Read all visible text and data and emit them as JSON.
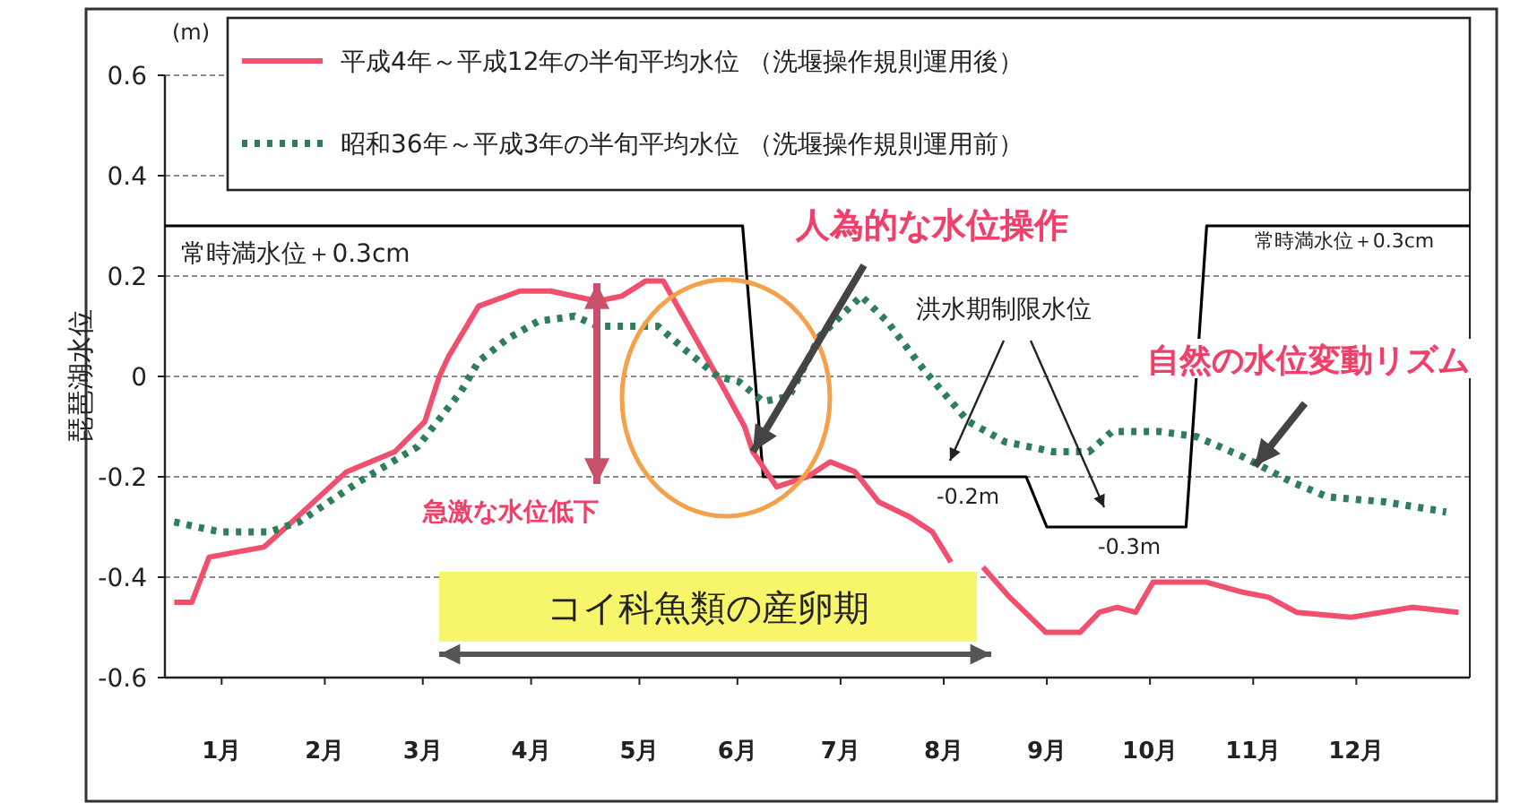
{
  "chart_data": {
    "type": "line",
    "ylabel": "琵琶湖水位",
    "xlim": [
      0,
      12.65
    ],
    "ylim": [
      -0.6,
      0.6
    ],
    "yticks": [
      -0.6,
      -0.4,
      -0.2,
      0,
      0.2,
      0.4,
      0.6
    ],
    "xticks": [
      {
        "value": 0.55,
        "label": "1月"
      },
      {
        "value": 1.55,
        "label": "2月"
      },
      {
        "value": 2.5,
        "label": "3月"
      },
      {
        "value": 3.55,
        "label": "4月"
      },
      {
        "value": 4.6,
        "label": "5月"
      },
      {
        "value": 5.55,
        "label": "6月"
      },
      {
        "value": 6.55,
        "label": "7月"
      },
      {
        "value": 7.55,
        "label": "8月"
      },
      {
        "value": 8.55,
        "label": "9月"
      },
      {
        "value": 9.55,
        "label": "10月"
      },
      {
        "value": 10.55,
        "label": "11月"
      },
      {
        "value": 11.55,
        "label": "12月"
      }
    ],
    "grid": "y",
    "legend": "top",
    "marker": "none",
    "series": [
      {
        "name": "平成4年～平成12年の半旬平均水位 （洗堰操作規則運用後）",
        "color": "#f0506e",
        "line_style": "solid",
        "x": [
          0.09,
          0.26,
          0.43,
          0.96,
          1.23,
          1.76,
          2.23,
          2.52,
          2.66,
          2.75,
          3.04,
          3.44,
          3.74,
          4.19,
          4.43,
          4.66,
          4.83,
          5.3,
          5.62,
          5.7,
          5.93,
          6.23,
          6.45,
          6.69,
          6.92,
          7.22,
          7.44,
          7.62,
          7.75,
          7.93,
          8.19,
          8.54,
          8.87,
          9.06,
          9.23,
          9.41,
          9.58,
          10.1,
          10.45,
          10.7,
          10.97,
          11.5,
          12.09,
          12.54
        ],
        "values": [
          -0.45,
          -0.45,
          -0.36,
          -0.34,
          -0.29,
          -0.19,
          -0.15,
          -0.09,
          0.0,
          0.04,
          0.14,
          0.17,
          0.17,
          0.15,
          0.16,
          0.19,
          0.19,
          0.02,
          -0.1,
          -0.15,
          -0.22,
          -0.2,
          -0.17,
          -0.19,
          -0.25,
          -0.28,
          -0.31,
          -0.37,
          null,
          -0.38,
          -0.44,
          -0.51,
          -0.51,
          -0.47,
          -0.46,
          -0.47,
          -0.41,
          -0.41,
          -0.43,
          -0.44,
          -0.47,
          -0.48,
          -0.46,
          -0.47
        ]
      },
      {
        "name": "昭和36年～平成3年の半旬平均水位 （洗堰操作規則運用前）",
        "color": "#2e7d5b",
        "line_style": "dotted",
        "x": [
          0.09,
          0.54,
          1.01,
          1.3,
          1.88,
          2.45,
          2.87,
          3.04,
          3.32,
          3.62,
          3.97,
          4.2,
          4.43,
          4.78,
          5.06,
          5.36,
          5.56,
          5.8,
          6.05,
          6.35,
          6.75,
          7.0,
          7.37,
          7.79,
          8.14,
          8.61,
          8.96,
          9.18,
          9.65,
          10.0,
          10.45,
          10.92,
          11.27,
          11.83,
          12.42
        ],
        "values": [
          -0.29,
          -0.31,
          -0.31,
          -0.29,
          -0.21,
          -0.14,
          -0.03,
          0.03,
          0.075,
          0.11,
          0.12,
          0.1,
          0.1,
          0.1,
          0.05,
          0.0,
          -0.01,
          -0.05,
          -0.04,
          0.08,
          0.16,
          0.11,
          0.01,
          -0.09,
          -0.13,
          -0.15,
          -0.15,
          -0.11,
          -0.11,
          -0.12,
          -0.16,
          -0.21,
          -0.24,
          -0.25,
          -0.27
        ]
      },
      {
        "color": "#000000",
        "line_style": "solid",
        "x": [
          0,
          5.6,
          5.8,
          8.35,
          8.55,
          9.9,
          10.1,
          12.65
        ],
        "values": [
          0.3,
          0.3,
          -0.2,
          -0.2,
          -0.3,
          -0.3,
          0.3,
          0.3
        ]
      }
    ],
    "annotations": [
      "(m)",
      "常時満水位＋0.3cm",
      "常時満水位＋0.3cm",
      {
        "text": "人為的な水位操作",
        "x": 5.7,
        "y": -0.15
      },
      "洪水期制限水位",
      "自然の水位変動リズム",
      "急激な水位低下",
      "コイ科魚類の産卵期",
      "-0.2m",
      "-0.3m"
    ]
  }
}
